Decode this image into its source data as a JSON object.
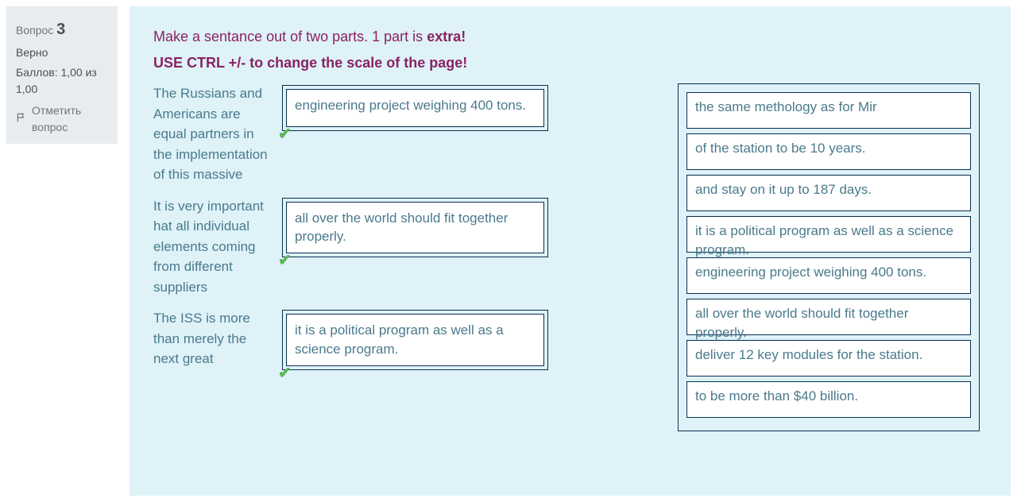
{
  "colors": {
    "page_bg": "#ffffff",
    "info_bg": "#e9ecef",
    "content_bg": "#def2f8",
    "instruction": "#8b2362",
    "text_teal": "#4a7a8c",
    "border": "#0b2e4f",
    "correct": "#5cb85c",
    "muted": "#6c757d"
  },
  "info": {
    "question_label": "Вопрос",
    "question_number": "3",
    "status": "Верно",
    "score_line": "Баллов: 1,00 из 1,00",
    "flag_label": "Отметить вопрос"
  },
  "instructions": {
    "line1_pre": "Make a sentance out of two parts. 1 part is ",
    "line1_bold": "extra!",
    "line2": "USE CTRL  +/- to change the scale of the page!"
  },
  "matches": [
    {
      "prompt": "The Russians and Americans are equal partners in the implementation of this massive",
      "answer": "engineering project weighing 400 tons.",
      "correct": true
    },
    {
      "prompt": "It is very important hat all individual elements coming from different suppliers",
      "answer": "all over the world should fit together properly.",
      "correct": true
    },
    {
      "prompt": "The ISS is more than merely the next great",
      "answer": "it is a political program as well as a science program.",
      "correct": true
    }
  ],
  "pool": [
    "the same methology as for Mir",
    "of the station to be 10 years.",
    "and stay on it up to 187 days.",
    "it is a political program as well as a science program.",
    "engineering project weighing 400 tons.",
    "all over the world should fit together properly.",
    "deliver 12 key modules for the station.",
    "to be more than $40 billion."
  ]
}
